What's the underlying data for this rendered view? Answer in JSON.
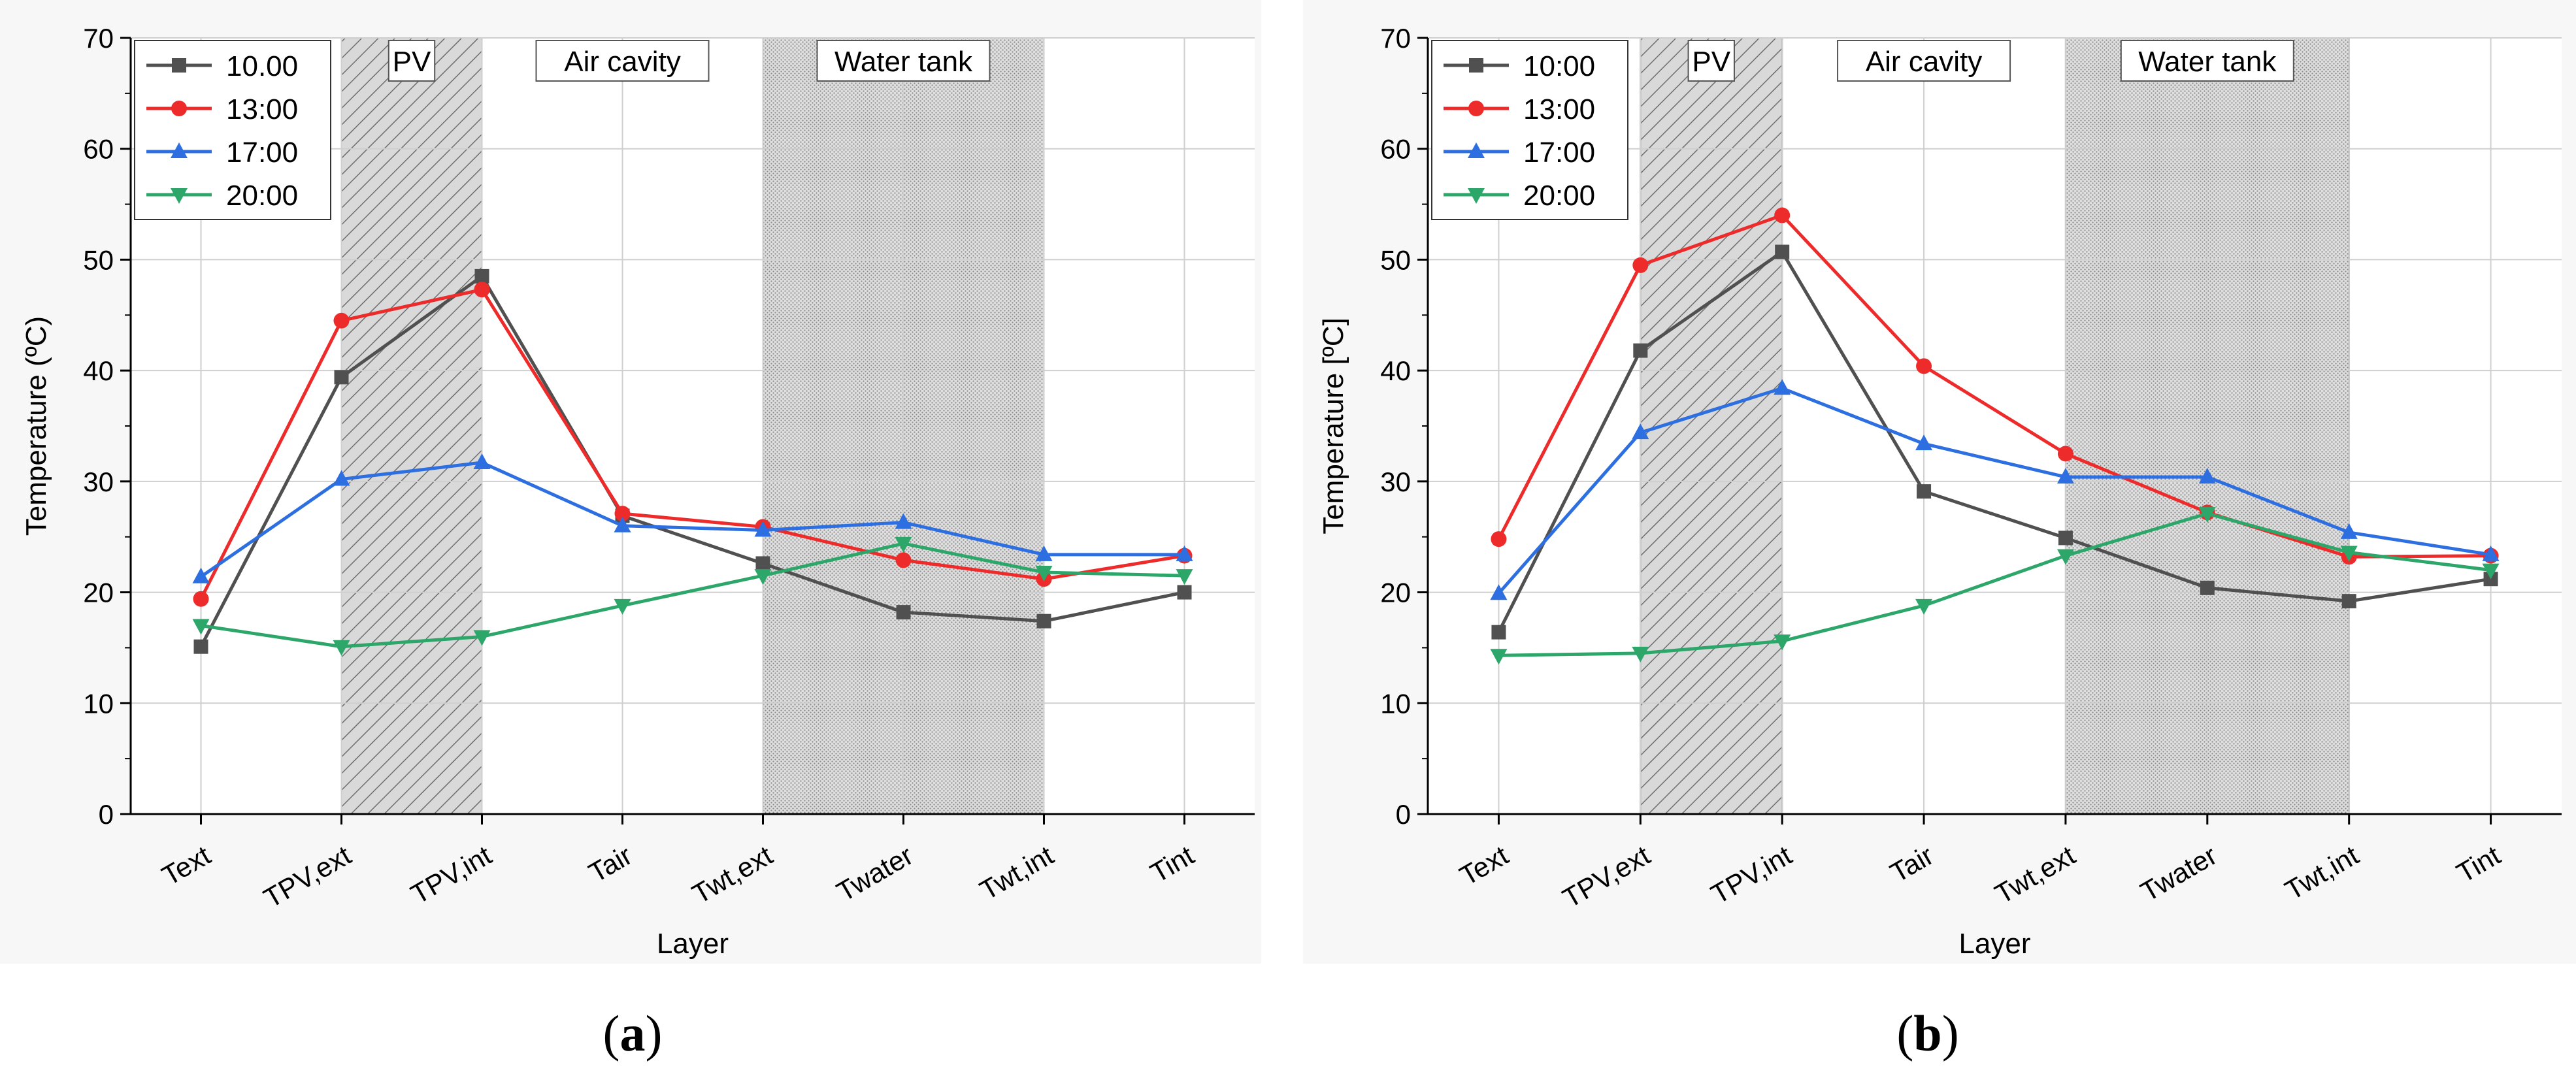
{
  "figure": {
    "caption_a_letter": "a",
    "caption_b_letter": "b"
  },
  "chart_data": [
    {
      "type": "line",
      "panel": "a",
      "xlabel": "Layer",
      "ylabel": "Temperature (ºC)",
      "ylim": [
        0,
        70
      ],
      "yticks": [
        0,
        10,
        20,
        30,
        40,
        50,
        60,
        70
      ],
      "grid": true,
      "legend_position": "top-left",
      "categories": [
        "Text",
        "TPV,ext",
        "TPV,int",
        "Tair",
        "Twt,ext",
        "Twater",
        "Twt,int",
        "Tint"
      ],
      "regions": [
        {
          "label": "PV",
          "from": 1,
          "to": 2,
          "fill": "hatch"
        },
        {
          "label": "Air cavity",
          "from": 2,
          "to": 4,
          "fill": "none"
        },
        {
          "label": "Water tank",
          "from": 4,
          "to": 6,
          "fill": "dots"
        }
      ],
      "series": [
        {
          "name": "10.00",
          "color": "#505050",
          "marker": "square",
          "values": [
            15.1,
            39.4,
            48.5,
            26.9,
            22.6,
            18.2,
            17.4,
            20.0
          ]
        },
        {
          "name": "13:00",
          "color": "#ee2b2b",
          "marker": "circle",
          "values": [
            19.4,
            44.5,
            47.3,
            27.1,
            25.9,
            22.9,
            21.2,
            23.3
          ]
        },
        {
          "name": "17:00",
          "color": "#2d6fe0",
          "marker": "triangle-up",
          "values": [
            21.4,
            30.2,
            31.7,
            26.0,
            25.6,
            26.3,
            23.4,
            23.4
          ]
        },
        {
          "name": "20:00",
          "color": "#2da66a",
          "marker": "triangle-down",
          "values": [
            17.0,
            15.1,
            16.0,
            18.8,
            21.5,
            24.4,
            21.8,
            21.5
          ]
        }
      ]
    },
    {
      "type": "line",
      "panel": "b",
      "xlabel": "Layer",
      "ylabel": "Temperature [ºC]",
      "ylim": [
        0,
        70
      ],
      "yticks": [
        0,
        10,
        20,
        30,
        40,
        50,
        60,
        70
      ],
      "grid": true,
      "legend_position": "top-left",
      "categories": [
        "Text",
        "TPV,ext",
        "TPV,int",
        "Tair",
        "Twt,ext",
        "Twater",
        "Twt,int",
        "Tint"
      ],
      "regions": [
        {
          "label": "PV",
          "from": 1,
          "to": 2,
          "fill": "hatch"
        },
        {
          "label": "Air cavity",
          "from": 2,
          "to": 4,
          "fill": "none"
        },
        {
          "label": "Water tank",
          "from": 4,
          "to": 6,
          "fill": "dots"
        }
      ],
      "series": [
        {
          "name": "10:00",
          "color": "#505050",
          "marker": "square",
          "values": [
            16.4,
            41.8,
            50.7,
            29.1,
            24.9,
            20.4,
            19.2,
            21.2
          ]
        },
        {
          "name": "13:00",
          "color": "#ee2b2b",
          "marker": "circle",
          "values": [
            24.8,
            49.5,
            54.0,
            40.4,
            32.5,
            27.2,
            23.2,
            23.3
          ]
        },
        {
          "name": "17:00",
          "color": "#2d6fe0",
          "marker": "triangle-up",
          "values": [
            19.9,
            34.4,
            38.4,
            33.4,
            30.4,
            30.4,
            25.4,
            23.4
          ]
        },
        {
          "name": "20:00",
          "color": "#2da66a",
          "marker": "triangle-down",
          "values": [
            14.3,
            14.5,
            15.6,
            18.8,
            23.3,
            27.1,
            23.6,
            22.0
          ]
        }
      ]
    }
  ]
}
